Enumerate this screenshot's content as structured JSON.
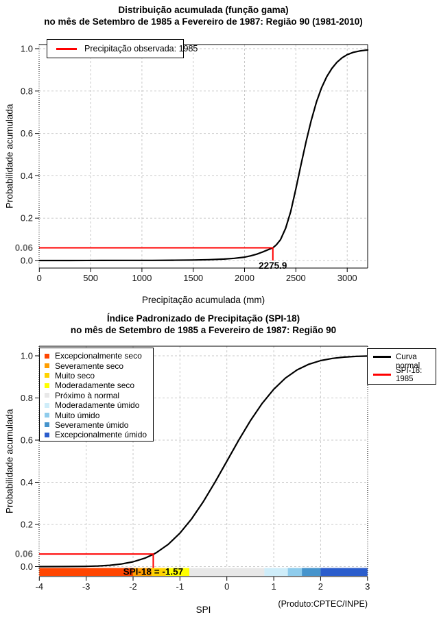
{
  "figure": {
    "charts": [
      {
        "title_line1": "Distribuição acumulada (função gama)",
        "title_line2": "no mês de Setembro de 1985 a Fevereiro de 1987: Região 90 (1981-2010)",
        "ylabel": "Probabilidade acumulada",
        "xlabel": "Precipitação acumulada (mm)",
        "legend": {
          "label": "Precipitação observada: 1985",
          "line_color": "#ff0000"
        },
        "chart_data": {
          "type": "line",
          "title": "Distribuição acumulada (função gama)",
          "xlabel": "Precipitação acumulada (mm)",
          "ylabel": "Probabilidade acumulada",
          "xlim": [
            0,
            3200
          ],
          "ylim": [
            0,
            1
          ],
          "grid": true,
          "xticks": [
            0,
            500,
            1000,
            1500,
            2000,
            2500,
            3000
          ],
          "xtick_labels": [
            "0",
            "500",
            "1000",
            "1500",
            "2000",
            "2500",
            "3000"
          ],
          "yticks": [
            0,
            0.2,
            0.4,
            0.6,
            0.8,
            1.0
          ],
          "ytick_labels": [
            "0.0",
            "0.2",
            "0.4",
            "0.6",
            "0.8",
            "1.0"
          ],
          "highlight": {
            "y": 0.06,
            "y_label": "0.06",
            "x": 2275.9,
            "x_label": "2275.9",
            "color": "#ff0000"
          },
          "series": [
            {
              "name": "Distribuição gama acumulada",
              "points": [
                [
                  0,
                  0
                ],
                [
                  300,
                  0
                ],
                [
                  600,
                  0.0002
                ],
                [
                  900,
                  0.0005
                ],
                [
                  1100,
                  0.0008
                ],
                [
                  1300,
                  0.0013
                ],
                [
                  1500,
                  0.0022
                ],
                [
                  1650,
                  0.0038
                ],
                [
                  1800,
                  0.0068
                ],
                [
                  1900,
                  0.0105
                ],
                [
                  2000,
                  0.016
                ],
                [
                  2060,
                  0.022
                ],
                [
                  2120,
                  0.03
                ],
                [
                  2180,
                  0.041
                ],
                [
                  2240,
                  0.053
                ],
                [
                  2275.9,
                  0.06
                ],
                [
                  2310,
                  0.074
                ],
                [
                  2350,
                  0.098
                ],
                [
                  2400,
                  0.152
                ],
                [
                  2450,
                  0.232
                ],
                [
                  2500,
                  0.338
                ],
                [
                  2550,
                  0.452
                ],
                [
                  2600,
                  0.562
                ],
                [
                  2650,
                  0.662
                ],
                [
                  2700,
                  0.748
                ],
                [
                  2750,
                  0.815
                ],
                [
                  2800,
                  0.867
                ],
                [
                  2850,
                  0.906
                ],
                [
                  2900,
                  0.936
                ],
                [
                  2950,
                  0.957
                ],
                [
                  3000,
                  0.972
                ],
                [
                  3060,
                  0.983
                ],
                [
                  3120,
                  0.989
                ],
                [
                  3180,
                  0.993
                ],
                [
                  3200,
                  0.994
                ]
              ]
            }
          ]
        }
      },
      {
        "title_line1": "Índice Padronizado de Precipitação (SPI-18)",
        "title_line2": "no mês de Setembro de 1985 a Fevereiro de 1987: Região 90",
        "ylabel": "Probabilidade acumulada",
        "xlabel": "SPI",
        "credit": "(Produto:CPTEC/INPE)",
        "legend_categories": [
          {
            "label": "Excepcionalmente seco",
            "color": "#FF4500"
          },
          {
            "label": "Severamente seco",
            "color": "#FF9E00"
          },
          {
            "label": "Muito seco",
            "color": "#FFD300"
          },
          {
            "label": "Moderadamente seco",
            "color": "#FFFF00"
          },
          {
            "label": "Próximo à normal",
            "color": "#E8E8E8"
          },
          {
            "label": "Moderadamente úmido",
            "color": "#CFEDF9"
          },
          {
            "label": "Muito úmido",
            "color": "#8FCCEC"
          },
          {
            "label": "Severamente úmido",
            "color": "#4694CC"
          },
          {
            "label": "Excepcionalmente úmido",
            "color": "#2B5DCC"
          }
        ],
        "legend_box": {
          "curve_label_line1": "Curva",
          "curve_label_line2": "normal",
          "curve_color": "#000000",
          "spi_label": "SPI-18: 1985",
          "spi_color": "#ff0000"
        },
        "chart_data": {
          "type": "line",
          "title": "Índice Padronizado de Precipitação (SPI-18)",
          "xlabel": "SPI",
          "ylabel": "Probabilidade acumulada",
          "xlim": [
            -4,
            3
          ],
          "ylim": [
            0,
            1
          ],
          "grid": true,
          "xticks": [
            -4,
            -3,
            -2,
            -1,
            0,
            1,
            2,
            3
          ],
          "xtick_labels": [
            "-4",
            "-3",
            "-2",
            "-1",
            "0",
            "1",
            "2",
            "3"
          ],
          "yticks": [
            0,
            0.2,
            0.4,
            0.6,
            0.8,
            1.0
          ],
          "ytick_labels": [
            "0.0",
            "0.2",
            "0.4",
            "0.6",
            "0.8",
            "1.0"
          ],
          "highlight": {
            "y": 0.06,
            "y_label": "0.06",
            "x": -1.57,
            "x_label": "SPI-18 = -1.57",
            "color": "#ff0000"
          },
          "series": [
            {
              "name": "Curva normal",
              "points": [
                [
                  -4,
                  3e-05
                ],
                [
                  -3.5,
                  0.0002
                ],
                [
                  -3,
                  0.0013
                ],
                [
                  -2.75,
                  0.003
                ],
                [
                  -2.5,
                  0.0062
                ],
                [
                  -2.25,
                  0.0122
                ],
                [
                  -2,
                  0.0228
                ],
                [
                  -1.75,
                  0.0401
                ],
                [
                  -1.57,
                  0.0582
                ],
                [
                  -1.5,
                  0.0668
                ],
                [
                  -1.25,
                  0.1056
                ],
                [
                  -1,
                  0.1587
                ],
                [
                  -0.75,
                  0.2266
                ],
                [
                  -0.5,
                  0.3085
                ],
                [
                  -0.25,
                  0.4013
                ],
                [
                  0,
                  0.5
                ],
                [
                  0.25,
                  0.5987
                ],
                [
                  0.5,
                  0.6915
                ],
                [
                  0.75,
                  0.7734
                ],
                [
                  1,
                  0.8413
                ],
                [
                  1.25,
                  0.8944
                ],
                [
                  1.5,
                  0.9332
                ],
                [
                  1.75,
                  0.9599
                ],
                [
                  2,
                  0.9772
                ],
                [
                  2.25,
                  0.9878
                ],
                [
                  2.5,
                  0.9938
                ],
                [
                  2.75,
                  0.997
                ],
                [
                  3,
                  0.9987
                ]
              ]
            }
          ],
          "category_bar": [
            {
              "from": -4,
              "to": -2,
              "color": "#FF4500",
              "label": "Excepcionalmente seco"
            },
            {
              "from": -2,
              "to": -1.6,
              "color": "#FF9E00",
              "label": "Severamente seco"
            },
            {
              "from": -1.6,
              "to": -1.3,
              "color": "#FFD300",
              "label": "Muito seco"
            },
            {
              "from": -1.3,
              "to": -0.8,
              "color": "#FFFF00",
              "label": "Moderadamente seco"
            },
            {
              "from": -0.8,
              "to": 0.8,
              "color": "#E8E8E8",
              "label": "Próximo à normal"
            },
            {
              "from": 0.8,
              "to": 1.3,
              "color": "#CFEDF9",
              "label": "Moderadamente úmido"
            },
            {
              "from": 1.3,
              "to": 1.6,
              "color": "#8FCCEC",
              "label": "Muito úmido"
            },
            {
              "from": 1.6,
              "to": 2,
              "color": "#4694CC",
              "label": "Severamente úmido"
            },
            {
              "from": 2,
              "to": 3,
              "color": "#2B5DCC",
              "label": "Excepcionalmente úmido"
            }
          ]
        }
      }
    ]
  }
}
